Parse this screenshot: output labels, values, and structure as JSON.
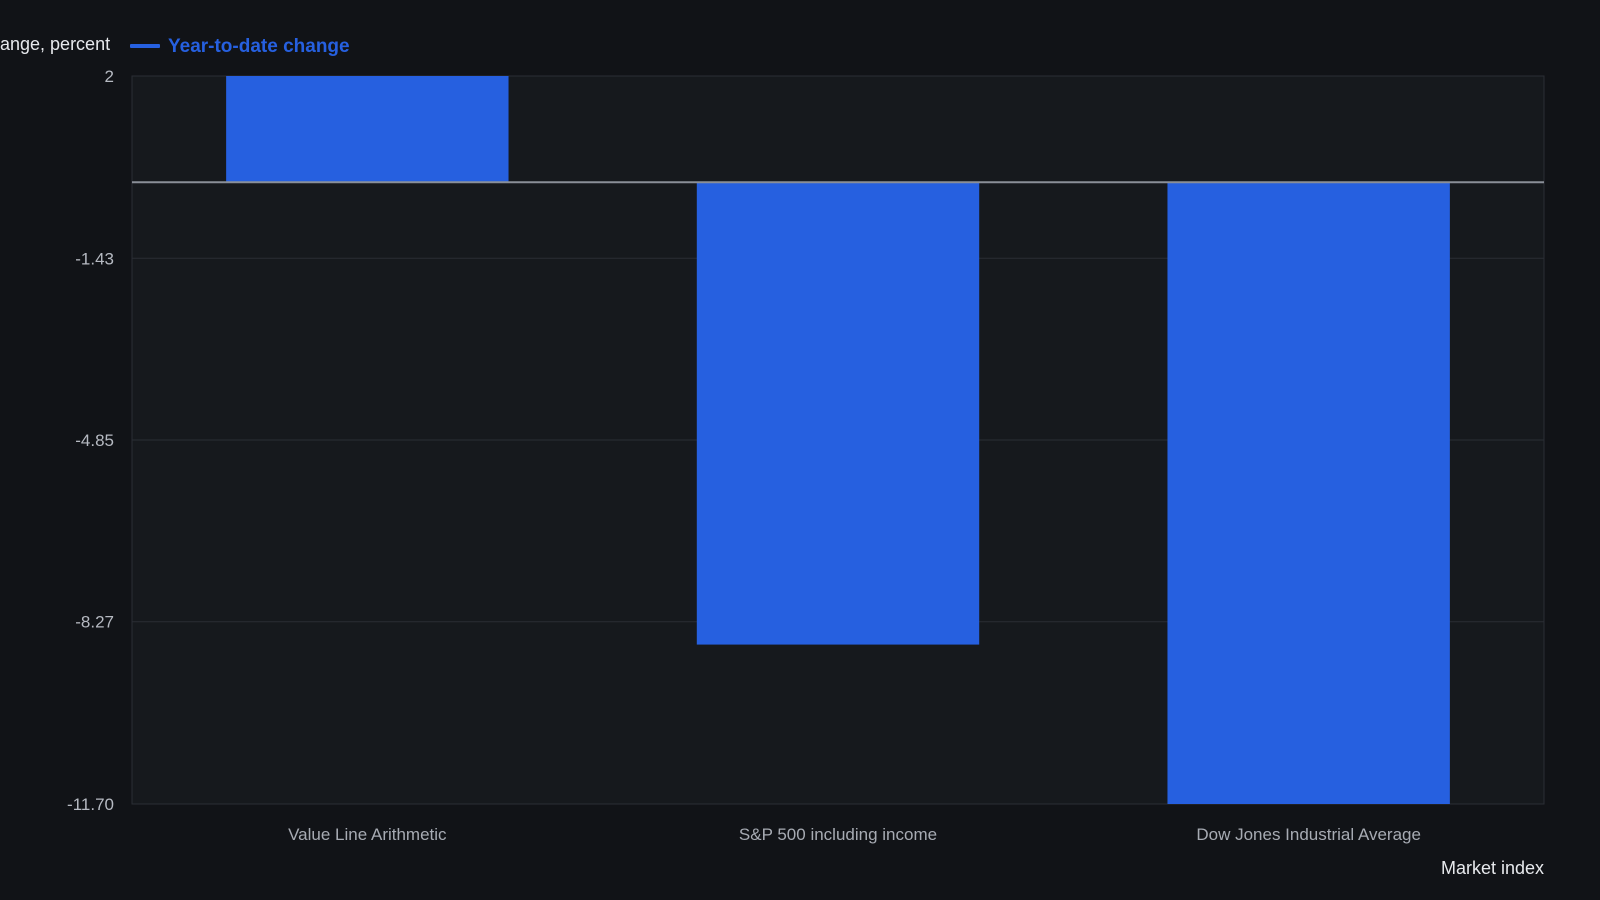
{
  "chart_data": {
    "type": "bar",
    "categories": [
      "Value Line Arithmetic",
      "S&P 500 including income",
      "Dow Jones Industrial Average"
    ],
    "series": [
      {
        "name": "Year-to-date change",
        "values": [
          2.0,
          -8.7,
          -11.7
        ]
      }
    ],
    "ylabel": "ange, percent",
    "xlabel": "Market index",
    "ylim": [
      -11.7,
      2
    ],
    "yticks": [
      2,
      -1.43,
      -4.85,
      -8.27,
      -11.7
    ],
    "ytick_labels": [
      "2",
      "-1.43",
      "-4.85",
      "-8.27",
      "-11.70"
    ],
    "grid": true,
    "legend_position": "top-left",
    "colors": {
      "bar": "#2660e0",
      "background": "#111317",
      "plot_background": "#16191d",
      "zero_line": "#8a8f98",
      "grid": "#2a2e35"
    }
  }
}
